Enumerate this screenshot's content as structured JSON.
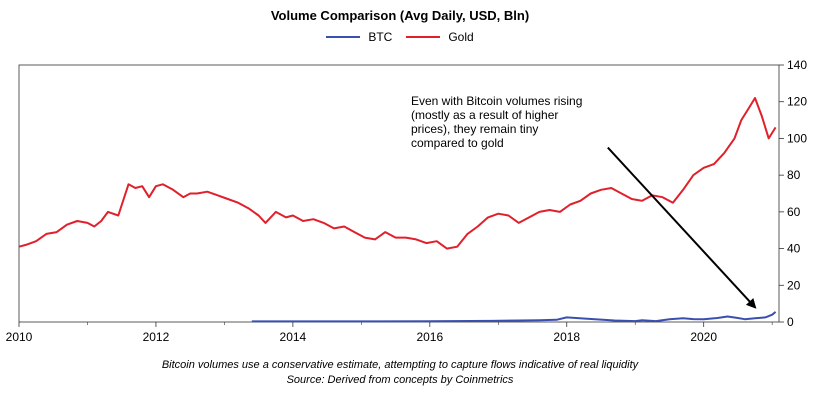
{
  "chart_data": {
    "type": "line",
    "title": "Volume Comparison (Avg Daily, USD, Bln)",
    "xlabel": "",
    "ylabel": "",
    "xlim": [
      2010,
      2021.1
    ],
    "ylim": [
      0,
      140
    ],
    "x_ticks": [
      "2010",
      "2012",
      "2014",
      "2016",
      "2018",
      "2020"
    ],
    "y_ticks": [
      "0",
      "20",
      "40",
      "60",
      "80",
      "100",
      "120",
      "140"
    ],
    "y_axis_side": "right",
    "grid": false,
    "legend_position": "top-center",
    "series": [
      {
        "name": "BTC",
        "color": "#3b4fb0",
        "x": [
          2013.4,
          2014,
          2015,
          2016,
          2016.9,
          2017.3,
          2017.6,
          2017.85,
          2018.0,
          2018.3,
          2018.7,
          2019.0,
          2019.1,
          2019.3,
          2019.5,
          2019.7,
          2019.85,
          2020.0,
          2020.2,
          2020.35,
          2020.5,
          2020.6,
          2020.75,
          2020.9,
          2021.0,
          2021.05
        ],
        "values": [
          0.3,
          0.3,
          0.3,
          0.4,
          0.6,
          0.8,
          1.0,
          1.2,
          2.5,
          1.8,
          0.8,
          0.5,
          0.9,
          0.5,
          1.5,
          2.0,
          1.6,
          1.5,
          2.2,
          3.0,
          2.2,
          1.5,
          2.0,
          2.5,
          4.0,
          5.5
        ]
      },
      {
        "name": "Gold",
        "color": "#e0202b",
        "x": [
          2010.0,
          2010.1,
          2010.25,
          2010.4,
          2010.55,
          2010.7,
          2010.85,
          2011.0,
          2011.1,
          2011.2,
          2011.3,
          2011.45,
          2011.6,
          2011.7,
          2011.8,
          2011.9,
          2012.0,
          2012.1,
          2012.25,
          2012.4,
          2012.5,
          2012.6,
          2012.75,
          2012.9,
          2013.05,
          2013.2,
          2013.35,
          2013.5,
          2013.6,
          2013.75,
          2013.9,
          2014.0,
          2014.15,
          2014.3,
          2014.45,
          2014.6,
          2014.75,
          2014.9,
          2015.05,
          2015.2,
          2015.35,
          2015.5,
          2015.65,
          2015.8,
          2015.95,
          2016.1,
          2016.25,
          2016.4,
          2016.55,
          2016.7,
          2016.85,
          2017.0,
          2017.15,
          2017.3,
          2017.45,
          2017.6,
          2017.75,
          2017.9,
          2018.05,
          2018.2,
          2018.35,
          2018.5,
          2018.65,
          2018.8,
          2018.95,
          2019.1,
          2019.25,
          2019.4,
          2019.55,
          2019.7,
          2019.85,
          2020.0,
          2020.15,
          2020.3,
          2020.45,
          2020.55,
          2020.65,
          2020.75,
          2020.85,
          2020.95,
          2021.05
        ],
        "values": [
          41,
          42,
          44,
          48,
          49,
          53,
          55,
          54,
          52,
          55,
          60,
          58,
          75,
          73,
          74,
          68,
          74,
          75,
          72,
          68,
          70,
          70,
          71,
          69,
          67,
          65,
          62,
          58,
          54,
          60,
          57,
          58,
          55,
          56,
          54,
          51,
          52,
          49,
          46,
          45,
          49,
          46,
          46,
          45,
          43,
          44,
          40,
          41,
          48,
          52,
          57,
          59,
          58,
          54,
          57,
          60,
          61,
          60,
          64,
          66,
          70,
          72,
          73,
          70,
          67,
          66,
          69,
          68,
          65,
          72,
          80,
          84,
          86,
          92,
          100,
          110,
          116,
          122,
          112,
          100,
          106
        ]
      }
    ],
    "annotation": {
      "lines": [
        "Even with Bitcoin volumes rising",
        "(mostly as a result of higher",
        "prices), they remain tiny",
        "compared to gold"
      ],
      "arrow_from": [
        2018.6,
        95
      ],
      "arrow_to": [
        2020.75,
        8
      ]
    },
    "footnote": {
      "line1": "Bitcoin volumes use a conservative estimate, attempting to capture flows indicative of real liquidity",
      "line2": "Source: Derived from concepts by Coinmetrics"
    }
  }
}
